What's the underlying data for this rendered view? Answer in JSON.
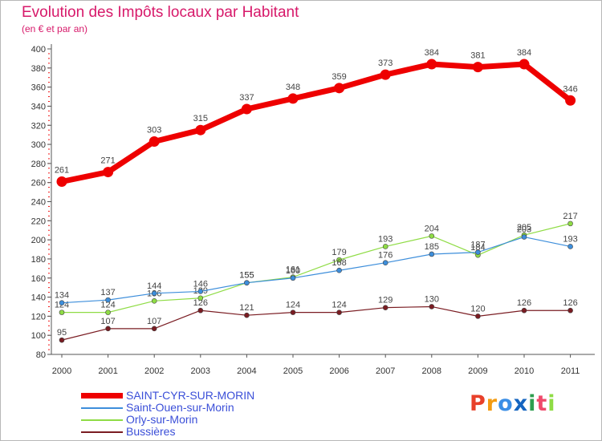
{
  "header": {
    "title": "Evolution des Impôts locaux par Habitant",
    "subtitle": "(en € et par an)"
  },
  "chart_data": {
    "type": "line",
    "title": "Evolution des Impôts locaux par Habitant",
    "subtitle": "(en € et par an)",
    "xlabel": "",
    "ylabel": "",
    "x": [
      2000,
      2001,
      2002,
      2003,
      2004,
      2005,
      2006,
      2007,
      2008,
      2009,
      2010,
      2011
    ],
    "ylim": [
      80,
      400
    ],
    "yticks": [
      80,
      100,
      120,
      140,
      160,
      180,
      200,
      220,
      240,
      260,
      280,
      300,
      320,
      340,
      360,
      380,
      400
    ],
    "grid": false,
    "legend_position": "bottom-left",
    "series": [
      {
        "name": "SAINT-CYR-SUR-MORIN",
        "color": "#ee0000",
        "values": [
          261,
          271,
          303,
          315,
          337,
          348,
          359,
          373,
          384,
          381,
          384,
          346
        ]
      },
      {
        "name": "Saint-Ouen-sur-Morin",
        "color": "#3d8edb",
        "values": [
          134,
          137,
          144,
          146,
          155,
          160,
          168,
          176,
          185,
          187,
          203,
          193
        ]
      },
      {
        "name": "Orly-sur-Morin",
        "color": "#8fdc45",
        "values": [
          124,
          124,
          136,
          139,
          155,
          161,
          179,
          193,
          204,
          184,
          205,
          217
        ]
      },
      {
        "name": "Bussières",
        "color": "#7a1c22",
        "values": [
          95,
          107,
          107,
          126,
          121,
          124,
          124,
          129,
          130,
          120,
          126,
          126
        ]
      }
    ]
  },
  "logo": {
    "text": "Proxiti",
    "colors": [
      "#e8402a",
      "#f39c12",
      "#3a8ee6",
      "#1565c0",
      "#2e9e4f",
      "#ef4a6b",
      "#8fdc45"
    ]
  }
}
